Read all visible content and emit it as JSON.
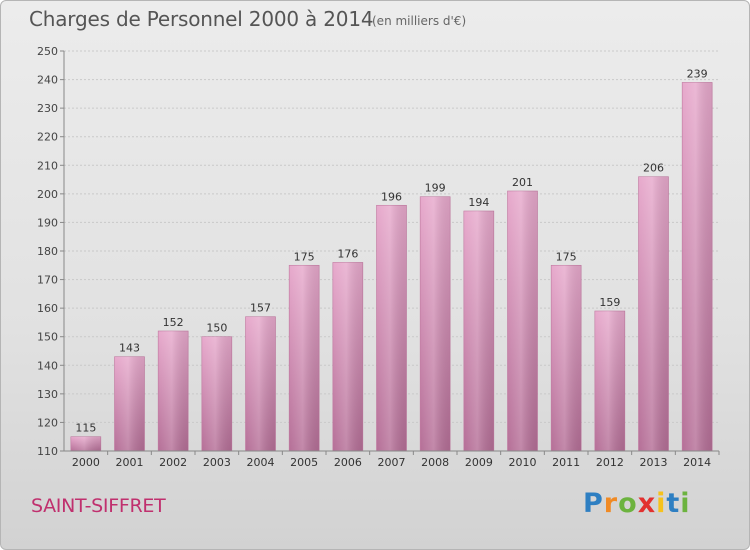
{
  "header": {
    "title": "Charges de Personnel 2000 à 2014",
    "unit_note": "(en milliers d'€)"
  },
  "footer": {
    "commune": "SAINT-SIFFRET",
    "brand": "Proxiti"
  },
  "colors": {
    "bar": "#d98cb6",
    "commune_text": "#c0306e"
  },
  "chart_data": {
    "type": "bar",
    "title": "Charges de Personnel 2000 à 2014",
    "subtitle": "(en milliers d'€)",
    "categories": [
      "2000",
      "2001",
      "2002",
      "2003",
      "2004",
      "2005",
      "2006",
      "2007",
      "2008",
      "2009",
      "2010",
      "2011",
      "2012",
      "2013",
      "2014"
    ],
    "values": [
      115,
      143,
      152,
      150,
      157,
      175,
      176,
      196,
      199,
      194,
      201,
      175,
      159,
      206,
      239
    ],
    "ylim": [
      110,
      250
    ],
    "yticks": [
      110,
      120,
      130,
      140,
      150,
      160,
      170,
      180,
      190,
      200,
      210,
      220,
      230,
      240,
      250
    ],
    "grid": true,
    "data_labels": true
  }
}
